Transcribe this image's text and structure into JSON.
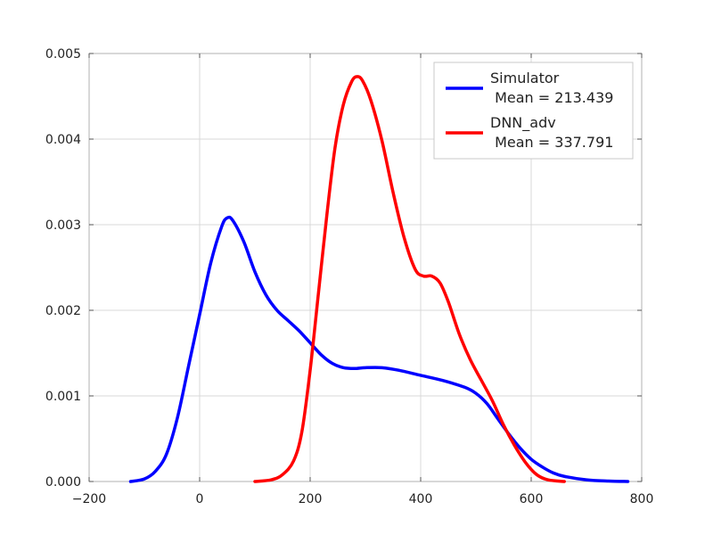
{
  "chart_data": {
    "type": "line",
    "title": "",
    "xlabel": "",
    "ylabel": "",
    "xlim": [
      -200,
      800
    ],
    "ylim": [
      0,
      0.005
    ],
    "xticks": [
      -200,
      0,
      200,
      400,
      600,
      800
    ],
    "xtick_labels": [
      "−200",
      "0",
      "200",
      "400",
      "600",
      "800"
    ],
    "yticks": [
      0,
      0.001,
      0.002,
      0.003,
      0.004,
      0.005
    ],
    "ytick_labels": [
      "0.000",
      "0.001",
      "0.002",
      "0.003",
      "0.004",
      "0.005"
    ],
    "grid": true,
    "legend_position": "top-right",
    "series": [
      {
        "name": "Simulator\n Mean = 213.439",
        "color": "#0000ff",
        "points": [
          [
            -125,
            0.0
          ],
          [
            -100,
            3e-05
          ],
          [
            -80,
            0.00012
          ],
          [
            -60,
            0.00032
          ],
          [
            -40,
            0.00075
          ],
          [
            -20,
            0.00135
          ],
          [
            0,
            0.00195
          ],
          [
            20,
            0.00255
          ],
          [
            40,
            0.00298
          ],
          [
            50,
            0.00308
          ],
          [
            60,
            0.00305
          ],
          [
            80,
            0.0028
          ],
          [
            100,
            0.00245
          ],
          [
            120,
            0.00218
          ],
          [
            140,
            0.002
          ],
          [
            160,
            0.00188
          ],
          [
            180,
            0.00176
          ],
          [
            200,
            0.00162
          ],
          [
            220,
            0.00148
          ],
          [
            240,
            0.00138
          ],
          [
            260,
            0.00133
          ],
          [
            280,
            0.00132
          ],
          [
            300,
            0.00133
          ],
          [
            330,
            0.00133
          ],
          [
            360,
            0.0013
          ],
          [
            400,
            0.00124
          ],
          [
            440,
            0.00118
          ],
          [
            480,
            0.0011
          ],
          [
            500,
            0.00103
          ],
          [
            520,
            0.00091
          ],
          [
            540,
            0.00073
          ],
          [
            560,
            0.00055
          ],
          [
            580,
            0.00039
          ],
          [
            600,
            0.00026
          ],
          [
            620,
            0.00017
          ],
          [
            640,
            0.0001
          ],
          [
            660,
            6e-05
          ],
          [
            700,
            2e-05
          ],
          [
            740,
            5e-06
          ],
          [
            775,
            0.0
          ]
        ]
      },
      {
        "name": "DNN_adv\n Mean = 337.791",
        "color": "#ff0000",
        "points": [
          [
            100,
            0.0
          ],
          [
            130,
            2e-05
          ],
          [
            150,
            8e-05
          ],
          [
            170,
            0.00024
          ],
          [
            185,
            0.00058
          ],
          [
            200,
            0.0013
          ],
          [
            215,
            0.0022
          ],
          [
            230,
            0.0031
          ],
          [
            245,
            0.0039
          ],
          [
            260,
            0.0044
          ],
          [
            275,
            0.00467
          ],
          [
            285,
            0.00473
          ],
          [
            295,
            0.00468
          ],
          [
            310,
            0.00445
          ],
          [
            330,
            0.00398
          ],
          [
            350,
            0.00338
          ],
          [
            370,
            0.00285
          ],
          [
            390,
            0.00248
          ],
          [
            405,
            0.0024
          ],
          [
            420,
            0.0024
          ],
          [
            435,
            0.00232
          ],
          [
            450,
            0.0021
          ],
          [
            470,
            0.00172
          ],
          [
            490,
            0.00142
          ],
          [
            510,
            0.00118
          ],
          [
            530,
            0.00094
          ],
          [
            550,
            0.00066
          ],
          [
            570,
            0.00042
          ],
          [
            590,
            0.00022
          ],
          [
            610,
            8e-05
          ],
          [
            630,
            2e-05
          ],
          [
            660,
            0.0
          ]
        ]
      }
    ]
  }
}
